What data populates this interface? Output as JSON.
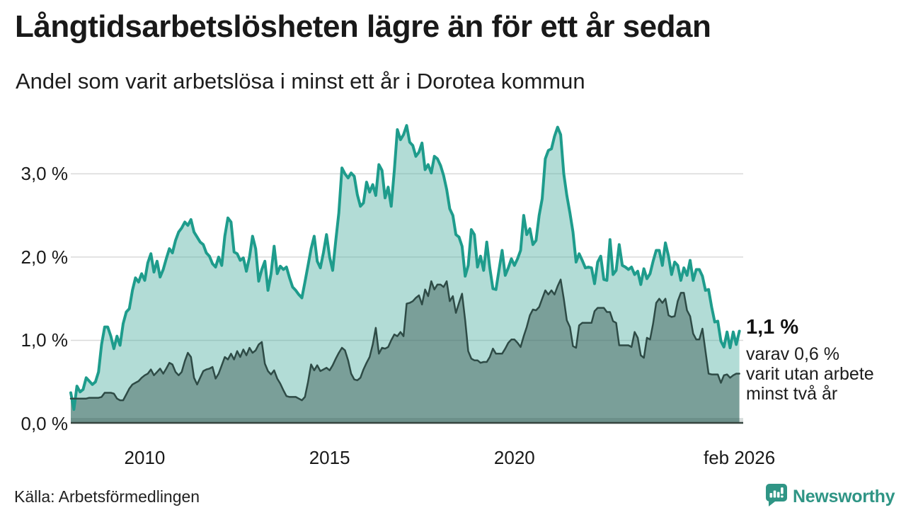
{
  "header": {
    "title": "Långtidsarbetslösheten lägre än för ett år sedan",
    "subtitle": "Andel som varit arbetslösa i minst ett år i Dorotea kommun"
  },
  "annotation": {
    "value_label": "1,1 %",
    "note_lines": [
      "varav 0,6 %",
      "varit utan arbete",
      "minst två år"
    ]
  },
  "footer": {
    "source": "Källa: Arbetsförmedlingen",
    "brand_name": "Newsworthy",
    "brand_icon": "newsworthy-speech-bubble-bar-chart-icon"
  },
  "colors": {
    "title_text": "#191919",
    "axis_text": "#191919",
    "grid": "#d9d9d9",
    "axis_line": "#36453f",
    "axis_band": "rgba(46,75,70,0.18)",
    "series1_line": "#1e9c8c",
    "series1_fill": "rgba(84,178,164,0.45)",
    "series2_line": "#2e4b46",
    "series2_fill": "rgba(46,75,70,0.42)",
    "brand": "#2f9585"
  },
  "chart_data": {
    "type": "area",
    "title": "Långtidsarbetslösheten lägre än för ett år sedan",
    "subtitle": "Andel som varit arbetslösa i minst ett år i Dorotea kommun",
    "x_start_year": 2008,
    "x_end_year": 2026.0833,
    "x_unit": "month",
    "ylim": [
      0,
      3.7
    ],
    "grid": true,
    "legend_position": "annotation-right",
    "y_ticks": [
      {
        "label": "0,0 %",
        "value": 0
      },
      {
        "label": "1,0 %",
        "value": 1
      },
      {
        "label": "2,0 %",
        "value": 2
      },
      {
        "label": "3,0 %",
        "value": 3
      }
    ],
    "x_ticks": [
      {
        "label": "2010",
        "year": 2010
      },
      {
        "label": "2015",
        "year": 2015
      },
      {
        "label": "2020",
        "year": 2020
      },
      {
        "label": "feb 2026",
        "year": 2026.0833
      }
    ],
    "series": [
      {
        "name": "Arbetslösa minst ett år",
        "end_value_label": "1,1 %",
        "values": [
          0.37,
          0.17,
          0.45,
          0.38,
          0.41,
          0.55,
          0.51,
          0.47,
          0.5,
          0.62,
          0.95,
          1.16,
          1.16,
          1.05,
          0.9,
          1.05,
          0.94,
          1.2,
          1.34,
          1.38,
          1.6,
          1.75,
          1.7,
          1.8,
          1.72,
          1.93,
          2.04,
          1.82,
          1.95,
          1.76,
          1.85,
          1.98,
          2.1,
          2.05,
          2.2,
          2.3,
          2.35,
          2.42,
          2.38,
          2.45,
          2.3,
          2.24,
          2.18,
          2.15,
          2.05,
          2.01,
          1.92,
          1.88,
          2.0,
          1.9,
          2.25,
          2.47,
          2.42,
          2.06,
          2.04,
          1.96,
          1.99,
          1.83,
          2.0,
          2.25,
          2.1,
          1.71,
          1.85,
          1.95,
          1.6,
          1.8,
          2.13,
          1.8,
          1.89,
          1.85,
          1.88,
          1.75,
          1.64,
          1.6,
          1.55,
          1.51,
          1.7,
          1.9,
          2.1,
          2.25,
          1.95,
          1.87,
          2.05,
          2.27,
          2.0,
          1.84,
          2.2,
          2.53,
          3.07,
          3.0,
          2.95,
          3.01,
          2.97,
          2.75,
          2.61,
          2.65,
          2.9,
          2.78,
          2.87,
          2.74,
          3.11,
          3.04,
          2.71,
          2.84,
          2.61,
          3.04,
          3.53,
          3.41,
          3.47,
          3.58,
          3.38,
          3.34,
          3.21,
          3.26,
          3.37,
          3.05,
          3.11,
          3.01,
          3.21,
          3.18,
          3.1,
          2.98,
          2.81,
          2.58,
          2.5,
          2.27,
          2.24,
          2.13,
          1.77,
          1.9,
          2.33,
          2.27,
          1.88,
          2.01,
          1.84,
          2.18,
          1.87,
          1.62,
          1.61,
          1.85,
          2.08,
          1.78,
          1.87,
          1.98,
          1.9,
          1.98,
          2.08,
          2.5,
          2.27,
          2.34,
          2.15,
          2.2,
          2.5,
          2.7,
          3.18,
          3.28,
          3.3,
          3.45,
          3.56,
          3.47,
          3.0,
          2.74,
          2.53,
          2.3,
          1.94,
          2.04,
          1.96,
          1.87,
          1.88,
          1.87,
          1.68,
          1.94,
          2.01,
          1.73,
          1.72,
          2.21,
          1.79,
          1.84,
          2.15,
          1.9,
          1.88,
          1.85,
          1.88,
          1.79,
          1.83,
          1.67,
          1.86,
          1.74,
          1.8,
          1.95,
          2.08,
          2.08,
          1.9,
          2.17,
          2.01,
          1.79,
          1.94,
          1.9,
          1.72,
          1.87,
          1.78,
          1.96,
          1.72,
          1.85,
          1.85,
          1.77,
          1.6,
          1.61,
          1.4,
          1.22,
          1.23,
          0.99,
          0.92,
          1.1,
          0.91,
          1.1,
          0.95,
          1.11
        ]
      },
      {
        "name": "varav utan arbete minst två år",
        "end_value_label": "0,6 %",
        "values": [
          0.3,
          0.3,
          0.3,
          0.3,
          0.3,
          0.3,
          0.31,
          0.31,
          0.31,
          0.31,
          0.32,
          0.37,
          0.37,
          0.37,
          0.36,
          0.3,
          0.28,
          0.28,
          0.35,
          0.42,
          0.47,
          0.49,
          0.51,
          0.55,
          0.58,
          0.6,
          0.65,
          0.58,
          0.62,
          0.66,
          0.6,
          0.66,
          0.73,
          0.71,
          0.62,
          0.58,
          0.62,
          0.75,
          0.85,
          0.8,
          0.55,
          0.47,
          0.55,
          0.63,
          0.65,
          0.66,
          0.68,
          0.54,
          0.6,
          0.7,
          0.8,
          0.77,
          0.84,
          0.77,
          0.87,
          0.8,
          0.89,
          0.82,
          0.91,
          0.85,
          0.88,
          0.95,
          0.98,
          0.72,
          0.63,
          0.59,
          0.64,
          0.54,
          0.48,
          0.4,
          0.33,
          0.32,
          0.32,
          0.32,
          0.3,
          0.28,
          0.32,
          0.5,
          0.71,
          0.64,
          0.7,
          0.63,
          0.65,
          0.67,
          0.64,
          0.7,
          0.78,
          0.85,
          0.91,
          0.88,
          0.76,
          0.6,
          0.53,
          0.52,
          0.55,
          0.65,
          0.73,
          0.8,
          0.95,
          1.15,
          0.84,
          0.91,
          0.9,
          0.92,
          1.0,
          1.07,
          1.05,
          1.1,
          1.05,
          1.44,
          1.45,
          1.47,
          1.51,
          1.54,
          1.43,
          1.61,
          1.53,
          1.71,
          1.61,
          1.67,
          1.67,
          1.64,
          1.71,
          1.47,
          1.53,
          1.33,
          1.45,
          1.56,
          1.24,
          0.87,
          0.78,
          0.76,
          0.76,
          0.73,
          0.74,
          0.74,
          0.8,
          0.9,
          0.84,
          0.84,
          0.84,
          0.9,
          0.97,
          1.01,
          1.01,
          0.97,
          0.92,
          1.05,
          1.16,
          1.3,
          1.37,
          1.36,
          1.4,
          1.5,
          1.6,
          1.55,
          1.6,
          1.55,
          1.65,
          1.73,
          1.5,
          1.24,
          1.16,
          0.93,
          0.91,
          1.18,
          1.21,
          1.21,
          1.21,
          1.21,
          1.35,
          1.39,
          1.39,
          1.39,
          1.34,
          1.34,
          1.23,
          1.21,
          0.94,
          0.94,
          0.94,
          0.94,
          0.92,
          1.1,
          1.03,
          0.82,
          0.79,
          1.03,
          1.01,
          1.2,
          1.45,
          1.5,
          1.45,
          1.5,
          1.3,
          1.28,
          1.29,
          1.47,
          1.57,
          1.57,
          1.36,
          1.29,
          1.08,
          1.01,
          1.01,
          1.14,
          0.87,
          0.6,
          0.59,
          0.59,
          0.59,
          0.49,
          0.58,
          0.59,
          0.55,
          0.58,
          0.6,
          0.6
        ]
      }
    ]
  }
}
